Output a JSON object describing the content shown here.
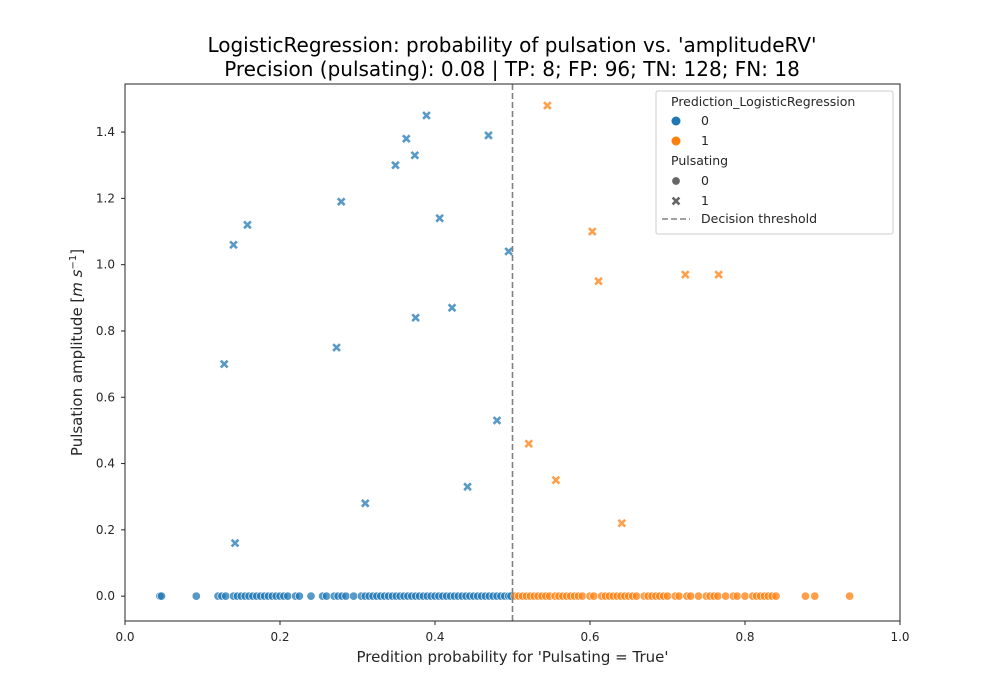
{
  "chart_data": {
    "type": "scatter",
    "title": "LogisticRegression: probability of pulsation vs. 'amplitudeRV'",
    "subtitle": "Precision (pulsating): 0.08 | TP: 8; FP: 96; TN: 128; FN: 18",
    "xlabel": "Predition probability for 'Pulsating = True'",
    "ylabel": "Pulsation amplitude [m s^-1]",
    "ylabel_parts": {
      "text": "Pulsation amplitude [",
      "unit_base": "m s",
      "unit_exp": "−1",
      "close": "]"
    },
    "xlim": [
      0.0,
      1.0
    ],
    "ylim": [
      -0.075,
      1.545
    ],
    "x_ticks": [
      0.0,
      0.2,
      0.4,
      0.6,
      0.8,
      1.0
    ],
    "x_tick_labels": [
      "0.0",
      "0.2",
      "0.4",
      "0.6",
      "0.8",
      "1.0"
    ],
    "y_ticks": [
      0.0,
      0.2,
      0.4,
      0.6,
      0.8,
      1.0,
      1.2,
      1.4
    ],
    "y_tick_labels": [
      "0.0",
      "0.2",
      "0.4",
      "0.6",
      "0.8",
      "1.0",
      "1.2",
      "1.4"
    ],
    "grid": false,
    "threshold": 0.5,
    "colors": {
      "class_0": "#1f77b4",
      "class_1": "#ff7f0e",
      "threshold": "#808080"
    },
    "legend": {
      "position": "top-right",
      "hue_title": "Prediction_LogisticRegression",
      "hue_entries": [
        {
          "label": "0",
          "color": "#1f77b4"
        },
        {
          "label": "1",
          "color": "#ff7f0e"
        }
      ],
      "style_title": "Pulsating",
      "style_entries": [
        {
          "label": "0",
          "marker": "circle"
        },
        {
          "label": "1",
          "marker": "x"
        }
      ],
      "threshold_label": "Decision threshold"
    },
    "series": [
      {
        "prediction": 0,
        "pulsating": 0,
        "marker": "circle",
        "x": [
          0.045,
          0.047,
          0.092,
          0.12,
          0.125,
          0.13,
          0.14,
          0.145,
          0.15,
          0.155,
          0.16,
          0.165,
          0.17,
          0.175,
          0.18,
          0.185,
          0.19,
          0.195,
          0.2,
          0.205,
          0.21,
          0.22,
          0.225,
          0.24,
          0.255,
          0.26,
          0.27,
          0.275,
          0.28,
          0.285,
          0.295,
          0.305,
          0.31,
          0.315,
          0.32,
          0.325,
          0.33,
          0.335,
          0.34,
          0.345,
          0.35,
          0.355,
          0.36,
          0.365,
          0.37,
          0.375,
          0.38,
          0.385,
          0.39,
          0.395,
          0.4,
          0.405,
          0.41,
          0.415,
          0.42,
          0.425,
          0.43,
          0.435,
          0.44,
          0.445,
          0.45,
          0.455,
          0.46,
          0.465,
          0.47,
          0.475,
          0.48,
          0.485,
          0.49,
          0.495,
          0.498
        ],
        "y": [
          0.0,
          0.0,
          0.0,
          0.0,
          0.0,
          0.0,
          0.0,
          0.0,
          0.0,
          0.0,
          0.0,
          0.0,
          0.0,
          0.0,
          0.0,
          0.0,
          0.0,
          0.0,
          0.0,
          0.0,
          0.0,
          0.0,
          0.0,
          0.0,
          0.0,
          0.0,
          0.0,
          0.0,
          0.0,
          0.0,
          0.0,
          0.0,
          0.0,
          0.0,
          0.0,
          0.0,
          0.0,
          0.0,
          0.0,
          0.0,
          0.0,
          0.0,
          0.0,
          0.0,
          0.0,
          0.0,
          0.0,
          0.0,
          0.0,
          0.0,
          0.0,
          0.0,
          0.0,
          0.0,
          0.0,
          0.0,
          0.0,
          0.0,
          0.0,
          0.0,
          0.0,
          0.0,
          0.0,
          0.0,
          0.0,
          0.0,
          0.0,
          0.0,
          0.0,
          0.0,
          0.0
        ]
      },
      {
        "prediction": 0,
        "pulsating": 1,
        "marker": "x",
        "x": [
          0.128,
          0.14,
          0.142,
          0.158,
          0.273,
          0.279,
          0.31,
          0.349,
          0.363,
          0.374,
          0.375,
          0.389,
          0.406,
          0.422,
          0.442,
          0.469,
          0.48,
          0.495
        ],
        "y": [
          0.7,
          1.06,
          0.16,
          1.12,
          0.75,
          1.19,
          0.28,
          1.3,
          1.38,
          1.33,
          0.84,
          1.45,
          1.14,
          0.87,
          0.33,
          1.39,
          0.53,
          1.04
        ]
      },
      {
        "prediction": 1,
        "pulsating": 0,
        "marker": "circle",
        "x": [
          0.503,
          0.508,
          0.513,
          0.518,
          0.523,
          0.528,
          0.533,
          0.538,
          0.543,
          0.548,
          0.555,
          0.56,
          0.565,
          0.57,
          0.575,
          0.58,
          0.585,
          0.59,
          0.6,
          0.605,
          0.615,
          0.62,
          0.625,
          0.63,
          0.635,
          0.64,
          0.645,
          0.65,
          0.655,
          0.66,
          0.67,
          0.675,
          0.68,
          0.685,
          0.69,
          0.695,
          0.7,
          0.71,
          0.715,
          0.725,
          0.73,
          0.74,
          0.75,
          0.755,
          0.76,
          0.765,
          0.775,
          0.785,
          0.79,
          0.8,
          0.81,
          0.815,
          0.82,
          0.825,
          0.83,
          0.835,
          0.84,
          0.878,
          0.89,
          0.935
        ],
        "y": [
          0.0,
          0.0,
          0.0,
          0.0,
          0.0,
          0.0,
          0.0,
          0.0,
          0.0,
          0.0,
          0.0,
          0.0,
          0.0,
          0.0,
          0.0,
          0.0,
          0.0,
          0.0,
          0.0,
          0.0,
          0.0,
          0.0,
          0.0,
          0.0,
          0.0,
          0.0,
          0.0,
          0.0,
          0.0,
          0.0,
          0.0,
          0.0,
          0.0,
          0.0,
          0.0,
          0.0,
          0.0,
          0.0,
          0.0,
          0.0,
          0.0,
          0.0,
          0.0,
          0.0,
          0.0,
          0.0,
          0.0,
          0.0,
          0.0,
          0.0,
          0.0,
          0.0,
          0.0,
          0.0,
          0.0,
          0.0,
          0.0,
          0.0,
          0.0,
          0.0
        ]
      },
      {
        "prediction": 1,
        "pulsating": 1,
        "marker": "x",
        "x": [
          0.521,
          0.545,
          0.556,
          0.603,
          0.611,
          0.641,
          0.723,
          0.766
        ],
        "y": [
          0.46,
          1.48,
          0.35,
          1.1,
          0.95,
          0.22,
          0.97,
          0.97
        ]
      }
    ]
  }
}
